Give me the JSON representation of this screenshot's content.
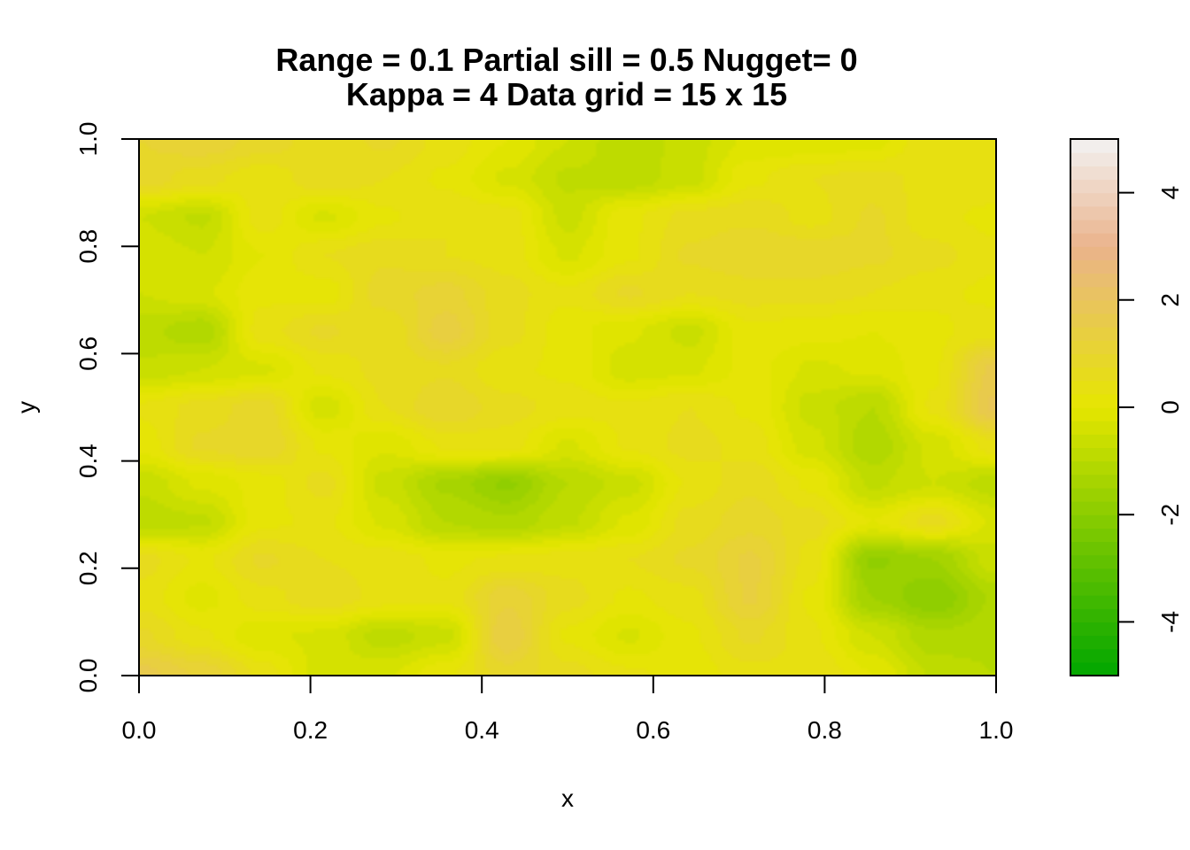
{
  "chart_data": {
    "type": "heatmap",
    "title_lines": [
      "Range = 0.1   Partial sill = 0.5   Nugget= 0",
      "Kappa = 4   Data grid = 15 x 15"
    ],
    "xlabel": "x",
    "ylabel": "y",
    "xlim": [
      0,
      1
    ],
    "ylim": [
      0,
      1
    ],
    "x_ticks": [
      "0.0",
      "0.2",
      "0.4",
      "0.6",
      "0.8",
      "1.0"
    ],
    "y_ticks": [
      "0.0",
      "0.2",
      "0.4",
      "0.6",
      "0.8",
      "1.0"
    ],
    "grid_resolution": [
      15,
      15
    ],
    "z_range": [
      -5,
      5
    ],
    "legend_ticks": [
      "-4",
      "-2",
      "0",
      "2",
      "4"
    ],
    "legend_placement": "right",
    "colors": {
      "low": "#00a600",
      "mid": "#e6e600",
      "high": "#eab38c",
      "top": "#f2f2f2"
    },
    "z": [
      [
        1.6,
        1.2,
        0.4,
        -0.4,
        -0.3,
        0.2,
        0.9,
        0.6,
        0.3,
        0.1,
        0.4,
        0.5,
        0.0,
        -0.8,
        -1.0
      ],
      [
        0.8,
        0.3,
        -0.2,
        -0.3,
        -0.9,
        -0.6,
        1.5,
        0.2,
        -0.3,
        0.2,
        0.8,
        0.3,
        -0.5,
        -1.2,
        -1.1
      ],
      [
        0.4,
        -0.1,
        0.4,
        0.7,
        0.4,
        0.3,
        1.2,
        0.6,
        0.2,
        0.4,
        1.3,
        0.2,
        -1.5,
        -2.0,
        -1.2
      ],
      [
        0.6,
        0.2,
        0.8,
        0.5,
        0.4,
        0.2,
        0.3,
        0.4,
        0.5,
        0.8,
        1.3,
        0.4,
        -1.8,
        -1.5,
        -0.6
      ],
      [
        -0.9,
        -0.8,
        0.2,
        0.3,
        -0.3,
        -1.0,
        -1.2,
        -0.8,
        -0.2,
        0.6,
        0.9,
        0.6,
        0.0,
        0.6,
        -0.3
      ],
      [
        -0.7,
        -0.2,
        0.1,
        0.6,
        -0.6,
        -1.3,
        -1.8,
        -1.0,
        -0.6,
        0.3,
        0.7,
        0.2,
        -0.8,
        -0.5,
        -0.9
      ],
      [
        0.1,
        0.8,
        1.0,
        0.2,
        -0.2,
        0.3,
        0.4,
        -0.3,
        0.3,
        0.6,
        0.4,
        -0.4,
        -1.2,
        -0.4,
        0.4
      ],
      [
        0.3,
        0.6,
        0.9,
        -0.4,
        0.5,
        1.0,
        0.6,
        0.4,
        0.3,
        0.5,
        0.2,
        -0.6,
        -1.0,
        0.3,
        1.8
      ],
      [
        -0.7,
        -0.5,
        -0.3,
        0.3,
        0.6,
        0.7,
        0.3,
        0.2,
        -0.4,
        -0.3,
        0.1,
        -0.3,
        -0.2,
        0.2,
        1.6
      ],
      [
        -0.9,
        -1.2,
        0.4,
        0.8,
        0.5,
        1.4,
        0.6,
        0.1,
        -0.2,
        -0.6,
        0.2,
        0.1,
        0.0,
        0.2,
        0.4
      ],
      [
        -0.5,
        -0.3,
        0.2,
        0.1,
        0.9,
        1.1,
        0.6,
        0.3,
        0.8,
        0.5,
        0.6,
        0.6,
        0.5,
        0.3,
        0.2
      ],
      [
        -0.3,
        -0.5,
        0.0,
        0.5,
        0.7,
        0.5,
        0.4,
        -0.3,
        0.2,
        0.8,
        1.0,
        1.0,
        0.8,
        0.6,
        0.3
      ],
      [
        -0.5,
        -0.8,
        0.4,
        -0.3,
        0.2,
        0.5,
        0.4,
        -0.6,
        0.2,
        0.6,
        0.7,
        0.4,
        0.8,
        0.3,
        0.2
      ],
      [
        0.9,
        0.6,
        0.3,
        0.7,
        0.5,
        0.2,
        -0.3,
        -0.8,
        -0.9,
        -0.6,
        0.2,
        0.5,
        0.6,
        0.4,
        0.4
      ],
      [
        1.0,
        1.2,
        0.9,
        0.6,
        0.8,
        0.4,
        0.0,
        -0.5,
        -1.0,
        -0.6,
        -0.2,
        -0.2,
        -0.1,
        0.5,
        0.4
      ]
    ]
  }
}
